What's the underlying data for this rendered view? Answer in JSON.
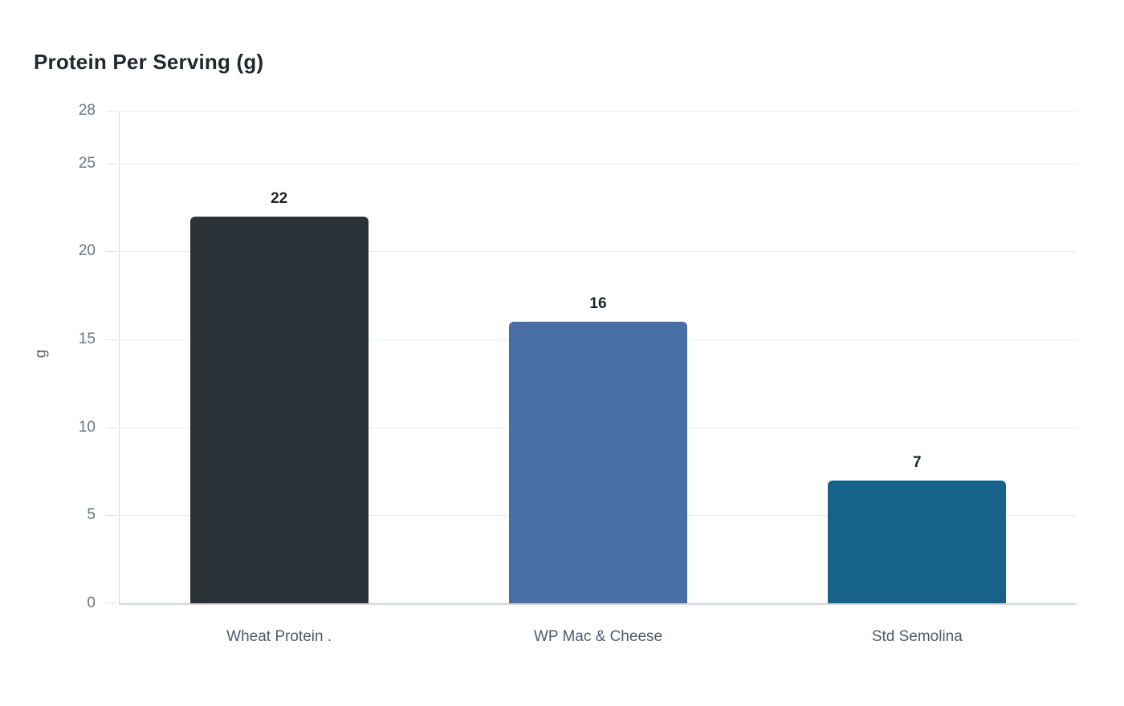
{
  "header": {
    "title": "Protein Per Serving (g)"
  },
  "chart_data": {
    "type": "bar",
    "title": "Protein Per Serving (g)",
    "categories": [
      "Wheat Protein .",
      "WP Mac & Cheese",
      "Std Semolina"
    ],
    "values": [
      22,
      16,
      7
    ],
    "value_labels": [
      "22",
      "16",
      "7"
    ],
    "bar_colors": [
      "#2b3338",
      "#4a6ea6",
      "#166289"
    ],
    "xlabel": "",
    "ylabel": "g",
    "ylim": [
      0,
      28
    ],
    "yticks": [
      0,
      5,
      10,
      15,
      20,
      25,
      28
    ],
    "grid": "horizontal-only",
    "legend": "none",
    "background_color": "#ffffff",
    "gridline_color": "#eceef0",
    "axis_line_color": "#d8dbde",
    "tick_label_color": "#6d7680",
    "category_label_color": "#515b65",
    "value_label_color": "#1d2227",
    "title_color": "#23272b"
  }
}
